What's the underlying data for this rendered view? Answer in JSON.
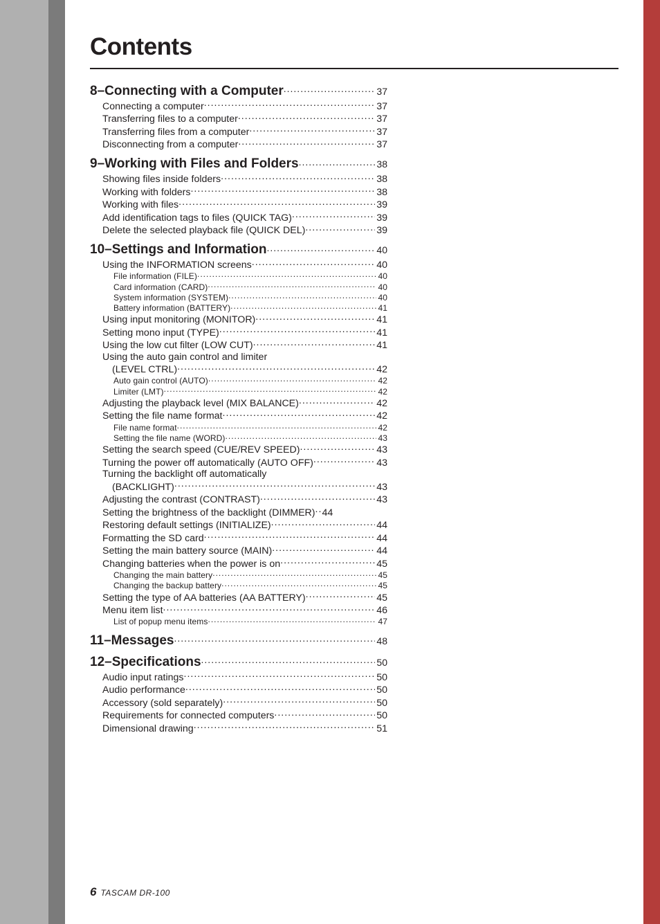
{
  "heading": "Contents",
  "footer": {
    "page": "6",
    "brand": "TASCAM",
    "model": "DR-100"
  },
  "toc": [
    {
      "level": 1,
      "label": "8–Connecting with a Computer",
      "page": "37"
    },
    {
      "level": 2,
      "label": "Connecting a computer",
      "page": "37"
    },
    {
      "level": 2,
      "label": "Transferring files to a computer",
      "page": "37"
    },
    {
      "level": 2,
      "label": "Transferring files from a computer",
      "page": "37"
    },
    {
      "level": 2,
      "label": "Disconnecting from a computer",
      "page": "37"
    },
    {
      "level": 1,
      "label": "9–Working with Files and Folders",
      "page": "38"
    },
    {
      "level": 2,
      "label": "Showing files inside folders",
      "page": "38"
    },
    {
      "level": 2,
      "label": "Working with folders",
      "page": "38"
    },
    {
      "level": 2,
      "label": "Working with files",
      "page": "39"
    },
    {
      "level": 2,
      "label": "Add identification tags to files (QUICK TAG)",
      "page": "39"
    },
    {
      "level": 2,
      "label": "Delete the selected playback file (QUICK DEL)",
      "page": "39"
    },
    {
      "level": 1,
      "label": "10–Settings and Information",
      "page": "40"
    },
    {
      "level": 2,
      "label": "Using the INFORMATION screens",
      "page": "40"
    },
    {
      "level": 3,
      "label": "File information (FILE)",
      "page": "40"
    },
    {
      "level": 3,
      "label": "Card information (CARD)",
      "page": "40"
    },
    {
      "level": 3,
      "label": "System information (SYSTEM)",
      "page": "40"
    },
    {
      "level": 3,
      "label": "Battery information (BATTERY)",
      "page": "41"
    },
    {
      "level": 2,
      "label": "Using input monitoring (MONITOR)",
      "page": "41"
    },
    {
      "level": 2,
      "label": "Setting mono input (TYPE)",
      "page": "41"
    },
    {
      "level": 2,
      "label": "Using the low cut filter (LOW CUT)",
      "page": "41"
    },
    {
      "level": 2,
      "wrap": true,
      "label_first": "Using the auto gain control and limiter",
      "label": "(LEVEL CTRL)",
      "page": "42"
    },
    {
      "level": 3,
      "label": "Auto gain control (AUTO)",
      "page": "42"
    },
    {
      "level": 3,
      "label": "Limiter (LMT)",
      "page": "42"
    },
    {
      "level": 2,
      "label": "Adjusting the playback level (MIX BALANCE)",
      "page": "42"
    },
    {
      "level": 2,
      "label": "Setting the file name format",
      "page": "42"
    },
    {
      "level": 3,
      "label": "File name format",
      "page": "42"
    },
    {
      "level": 3,
      "label": "Setting the file name (WORD)",
      "page": "43"
    },
    {
      "level": 2,
      "label": "Setting the search speed (CUE/REV SPEED)",
      "page": "43"
    },
    {
      "level": 2,
      "label": "Turning the power off automatically (AUTO OFF)",
      "page": "43"
    },
    {
      "level": 2,
      "wrap": true,
      "label_first": "Turning the backlight off automatically",
      "label": "(BACKLIGHT)",
      "page": "43"
    },
    {
      "level": 2,
      "label": "Adjusting the contrast (CONTRAST)",
      "page": "43"
    },
    {
      "level": 2,
      "label": "Setting the brightness of the backlight (DIMMER)",
      "page": "44",
      "tight": true
    },
    {
      "level": 2,
      "label": "Restoring default settings (INITIALIZE)",
      "page": "44"
    },
    {
      "level": 2,
      "label": "Formatting the SD card",
      "page": "44"
    },
    {
      "level": 2,
      "label": "Setting the main battery source (MAIN)",
      "page": "44"
    },
    {
      "level": 2,
      "label": "Changing batteries when the power is on",
      "page": "45"
    },
    {
      "level": 3,
      "label": "Changing the main battery",
      "page": "45"
    },
    {
      "level": 3,
      "label": "Changing the backup battery",
      "page": "45"
    },
    {
      "level": 2,
      "label": "Setting the type of AA batteries (AA BATTERY)",
      "page": "45"
    },
    {
      "level": 2,
      "label": "Menu item list",
      "page": "46"
    },
    {
      "level": 3,
      "label": "List of popup menu items",
      "page": "47"
    },
    {
      "level": 1,
      "label": "11–Messages",
      "page": "48"
    },
    {
      "level": 1,
      "label": "12–Specifications",
      "page": "50"
    },
    {
      "level": 2,
      "label": "Audio input ratings",
      "page": "50"
    },
    {
      "level": 2,
      "label": "Audio performance",
      "page": "50"
    },
    {
      "level": 2,
      "label": "Accessory (sold separately)",
      "page": "50"
    },
    {
      "level": 2,
      "label": "Requirements for connected computers",
      "page": "50"
    },
    {
      "level": 2,
      "label": "Dimensional drawing",
      "page": "51"
    }
  ]
}
